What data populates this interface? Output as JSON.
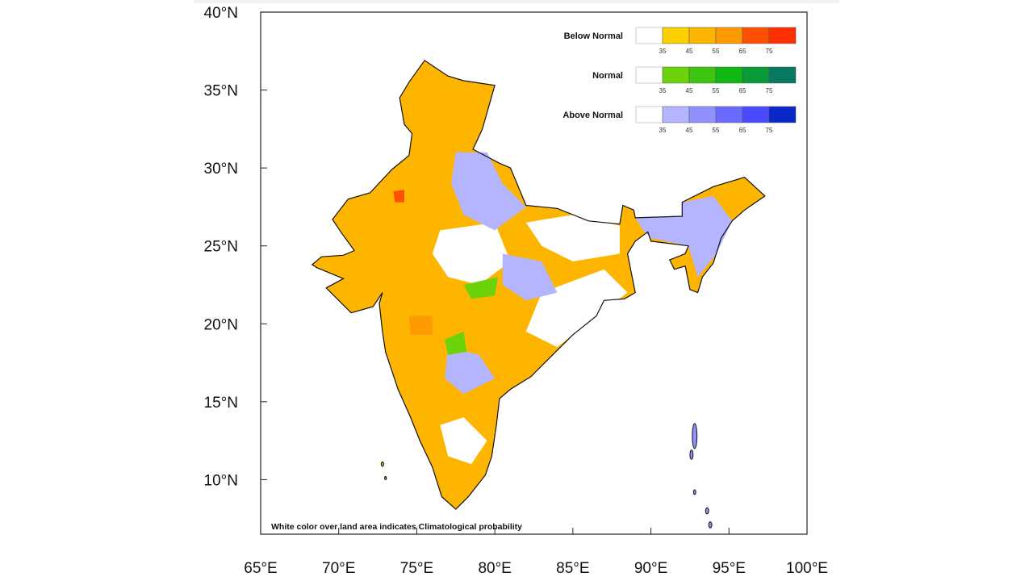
{
  "map": {
    "lat_labels": [
      "40°N",
      "35°N",
      "30°N",
      "25°N",
      "20°N",
      "15°N",
      "10°N"
    ],
    "lat_values": [
      40,
      35,
      30,
      25,
      20,
      15,
      10
    ],
    "lon_labels": [
      "65°E",
      "70°E",
      "75°E",
      "80°E",
      "85°E",
      "90°E",
      "95°E",
      "100°E"
    ],
    "lon_values": [
      65,
      70,
      75,
      80,
      85,
      90,
      95,
      100
    ],
    "extent": {
      "lon": [
        65,
        100
      ],
      "lat": [
        6.5,
        40
      ]
    },
    "note": "White color over land area indicates Climatological probability"
  },
  "legend": {
    "ticks": [
      "35",
      "45",
      "55",
      "65",
      "75"
    ],
    "categories": [
      {
        "label": "Below Normal",
        "colors": [
          "#ffffff",
          "#fdd000",
          "#fdb500",
          "#fd9a00",
          "#fd5000",
          "#fd3000"
        ]
      },
      {
        "label": "Normal",
        "colors": [
          "#ffffff",
          "#6cd20a",
          "#3cc410",
          "#10b814",
          "#0a9a3a",
          "#087860"
        ]
      },
      {
        "label": "Above Normal",
        "colors": [
          "#ffffff",
          "#b4b4ff",
          "#9090ff",
          "#6a6aff",
          "#4a4aff",
          "#0a28c8"
        ]
      }
    ]
  }
}
